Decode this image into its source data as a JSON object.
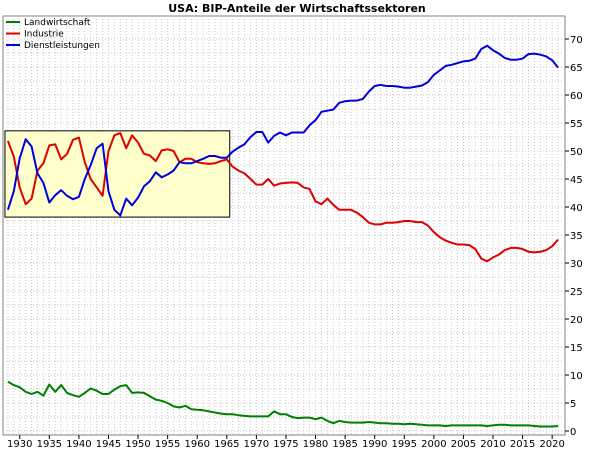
{
  "chart_data": {
    "type": "line",
    "title": "USA: BIP-Anteile der Wirtschaftssektoren",
    "xlabel": "",
    "ylabel": "",
    "xlim": [
      1927,
      2022
    ],
    "ylim": [
      0,
      72
    ],
    "x_ticks": [
      1930,
      1935,
      1940,
      1945,
      1950,
      1955,
      1960,
      1965,
      1970,
      1975,
      1980,
      1985,
      1990,
      1995,
      2000,
      2005,
      2010,
      2015,
      2020
    ],
    "y_ticks": [
      0,
      5,
      10,
      15,
      20,
      25,
      30,
      35,
      40,
      45,
      50,
      55,
      60,
      65,
      70
    ],
    "y_axis_side": "right",
    "grid": true,
    "legend_position": "top-left",
    "highlight_box": {
      "x_range": [
        1927.5,
        1965.5
      ],
      "y_range": [
        38.2,
        53.6
      ],
      "color": "#ffffcc"
    },
    "series": [
      {
        "name": "Landwirtschaft",
        "color": "#008000",
        "x": [
          1928,
          1929,
          1930,
          1931,
          1932,
          1933,
          1934,
          1935,
          1936,
          1937,
          1938,
          1939,
          1940,
          1941,
          1942,
          1943,
          1944,
          1945,
          1946,
          1947,
          1948,
          1949,
          1950,
          1951,
          1952,
          1953,
          1954,
          1955,
          1956,
          1957,
          1958,
          1959,
          1960,
          1961,
          1962,
          1963,
          1964,
          1965,
          1966,
          1967,
          1968,
          1969,
          1970,
          1971,
          1972,
          1973,
          1974,
          1975,
          1976,
          1977,
          1978,
          1979,
          1980,
          1981,
          1982,
          1983,
          1984,
          1985,
          1986,
          1987,
          1988,
          1989,
          1990,
          1991,
          1992,
          1993,
          1994,
          1995,
          1996,
          1997,
          1998,
          1999,
          2000,
          2001,
          2002,
          2003,
          2004,
          2005,
          2006,
          2007,
          2008,
          2009,
          2010,
          2011,
          2012,
          2013,
          2014,
          2015,
          2016,
          2017,
          2018,
          2019,
          2020,
          2021
        ],
        "values": [
          8.8,
          8.2,
          7.8,
          7.0,
          6.6,
          7.0,
          6.3,
          8.3,
          7.0,
          8.2,
          6.8,
          6.4,
          6.1,
          6.8,
          7.6,
          7.2,
          6.6,
          6.6,
          7.4,
          8.0,
          8.2,
          6.8,
          6.9,
          6.8,
          6.2,
          5.6,
          5.4,
          5.0,
          4.4,
          4.2,
          4.5,
          3.9,
          3.8,
          3.7,
          3.5,
          3.3,
          3.1,
          3.0,
          3.0,
          2.8,
          2.7,
          2.6,
          2.6,
          2.6,
          2.6,
          3.5,
          3.0,
          3.0,
          2.5,
          2.3,
          2.4,
          2.4,
          2.1,
          2.4,
          1.8,
          1.4,
          1.8,
          1.6,
          1.5,
          1.5,
          1.5,
          1.6,
          1.5,
          1.4,
          1.4,
          1.3,
          1.3,
          1.2,
          1.3,
          1.2,
          1.1,
          1.0,
          1.0,
          1.0,
          0.9,
          1.0,
          1.0,
          1.0,
          1.0,
          1.0,
          1.0,
          0.9,
          1.0,
          1.1,
          1.1,
          1.0,
          1.0,
          1.0,
          1.0,
          0.9,
          0.8,
          0.8,
          0.8,
          0.9
        ]
      },
      {
        "name": "Industrie",
        "color": "#e00000",
        "x": [
          1928,
          1929,
          1930,
          1931,
          1932,
          1933,
          1934,
          1935,
          1936,
          1937,
          1938,
          1939,
          1940,
          1941,
          1942,
          1943,
          1944,
          1945,
          1946,
          1947,
          1948,
          1949,
          1950,
          1951,
          1952,
          1953,
          1954,
          1955,
          1956,
          1957,
          1958,
          1959,
          1960,
          1961,
          1962,
          1963,
          1964,
          1965,
          1966,
          1967,
          1968,
          1969,
          1970,
          1971,
          1972,
          1973,
          1974,
          1975,
          1976,
          1977,
          1978,
          1979,
          1980,
          1981,
          1982,
          1983,
          1984,
          1985,
          1986,
          1987,
          1988,
          1989,
          1990,
          1991,
          1992,
          1993,
          1994,
          1995,
          1996,
          1997,
          1998,
          1999,
          2000,
          2001,
          2002,
          2003,
          2004,
          2005,
          2006,
          2007,
          2008,
          2009,
          2010,
          2011,
          2012,
          2013,
          2014,
          2015,
          2016,
          2017,
          2018,
          2019,
          2020,
          2021
        ],
        "values": [
          51.8,
          49.0,
          43.5,
          40.5,
          41.5,
          46.5,
          47.8,
          51.0,
          51.2,
          48.5,
          49.5,
          52.0,
          52.4,
          48.0,
          45.0,
          43.5,
          42.0,
          50.0,
          52.8,
          53.2,
          50.5,
          52.8,
          51.5,
          49.5,
          49.2,
          48.2,
          50.1,
          50.3,
          50.0,
          48.0,
          48.6,
          48.6,
          48.0,
          47.8,
          47.7,
          47.8,
          48.2,
          48.5,
          47.2,
          46.5,
          46.0,
          45.0,
          44.0,
          44.0,
          45.0,
          43.8,
          44.2,
          44.3,
          44.4,
          44.3,
          43.5,
          43.2,
          41.0,
          40.5,
          41.5,
          40.4,
          39.5,
          39.5,
          39.5,
          39.0,
          38.2,
          37.2,
          36.9,
          36.9,
          37.2,
          37.2,
          37.3,
          37.5,
          37.5,
          37.3,
          37.3,
          36.7,
          35.5,
          34.6,
          34.0,
          33.6,
          33.3,
          33.3,
          33.2,
          32.5,
          30.8,
          30.3,
          31.0,
          31.5,
          32.3,
          32.7,
          32.7,
          32.5,
          32.0,
          31.9,
          32.0,
          32.3,
          33.0,
          34.2
        ]
      },
      {
        "name": "Dienstleistungen",
        "color": "#0000e0",
        "x": [
          1928,
          1929,
          1930,
          1931,
          1932,
          1933,
          1934,
          1935,
          1936,
          1937,
          1938,
          1939,
          1940,
          1941,
          1942,
          1943,
          1944,
          1945,
          1946,
          1947,
          1948,
          1949,
          1950,
          1951,
          1952,
          1953,
          1954,
          1955,
          1956,
          1957,
          1958,
          1959,
          1960,
          1961,
          1962,
          1963,
          1964,
          1965,
          1966,
          1967,
          1968,
          1969,
          1970,
          1971,
          1972,
          1973,
          1974,
          1975,
          1976,
          1977,
          1978,
          1979,
          1980,
          1981,
          1982,
          1983,
          1984,
          1985,
          1986,
          1987,
          1988,
          1989,
          1990,
          1991,
          1992,
          1993,
          1994,
          1995,
          1996,
          1997,
          1998,
          1999,
          2000,
          2001,
          2002,
          2003,
          2004,
          2005,
          2006,
          2007,
          2008,
          2009,
          2010,
          2011,
          2012,
          2013,
          2014,
          2015,
          2016,
          2017,
          2018,
          2019,
          2020,
          2021
        ],
        "values": [
          39.5,
          42.8,
          48.7,
          52.1,
          50.8,
          46.0,
          44.3,
          40.8,
          42.1,
          43.0,
          42.0,
          41.4,
          41.8,
          45.0,
          47.5,
          50.5,
          51.3,
          42.8,
          39.5,
          38.5,
          41.5,
          40.3,
          41.7,
          43.7,
          44.6,
          46.2,
          45.3,
          45.8,
          46.5,
          48.0,
          47.8,
          47.8,
          48.2,
          48.6,
          49.1,
          49.1,
          48.8,
          48.8,
          49.9,
          50.6,
          51.2,
          52.5,
          53.4,
          53.4,
          51.5,
          52.7,
          53.3,
          52.8,
          53.3,
          53.3,
          53.3,
          54.6,
          55.5,
          57.0,
          57.2,
          57.4,
          58.6,
          58.9,
          59.0,
          59.0,
          59.3,
          60.6,
          61.6,
          61.8,
          61.6,
          61.6,
          61.5,
          61.3,
          61.3,
          61.5,
          61.7,
          62.3,
          63.6,
          64.4,
          65.2,
          65.4,
          65.7,
          66.0,
          66.1,
          66.5,
          68.2,
          68.8,
          68.0,
          67.4,
          66.6,
          66.3,
          66.3,
          66.5,
          67.3,
          67.4,
          67.2,
          66.9,
          66.2,
          64.9
        ]
      }
    ]
  }
}
